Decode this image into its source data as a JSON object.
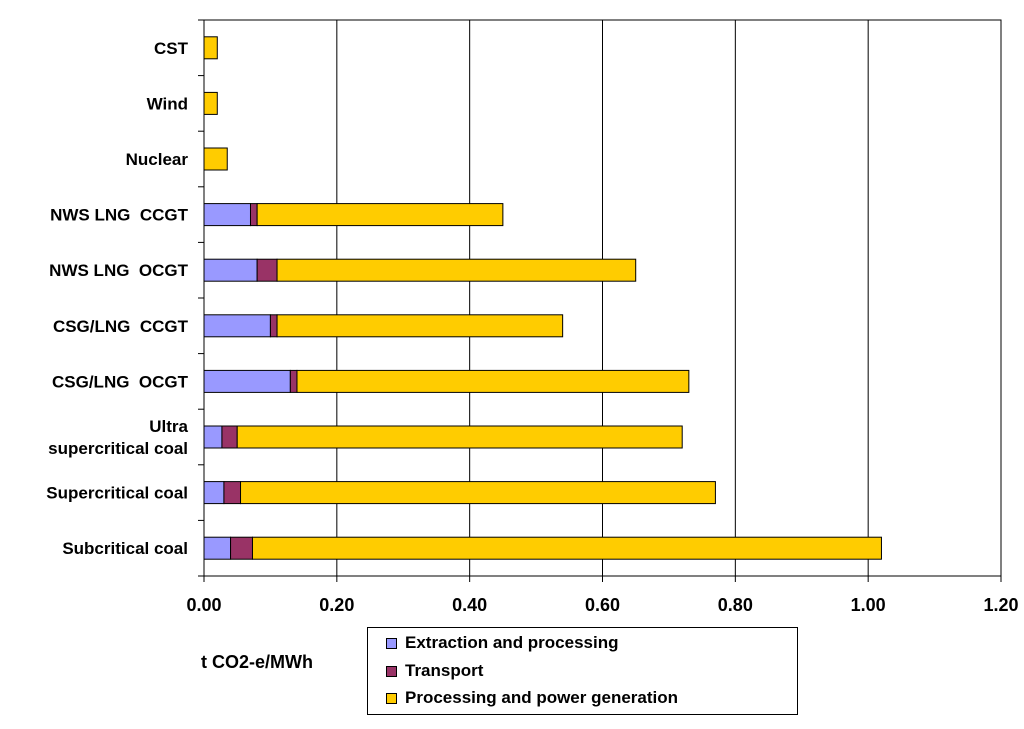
{
  "chart_data": {
    "type": "bar",
    "orientation": "horizontal",
    "stacked": true,
    "xlabel": "t CO2-e/MWh",
    "xlim": [
      0,
      1.2
    ],
    "xticks": [
      "0.00",
      "0.20",
      "0.40",
      "0.60",
      "0.80",
      "1.00",
      "1.20"
    ],
    "xtick_values": [
      0,
      0.2,
      0.4,
      0.6,
      0.8,
      1.0,
      1.2
    ],
    "grid": "vertical",
    "legend_position": "bottom",
    "categories": [
      "CST",
      "Wind",
      "Nuclear",
      "NWS LNG  CCGT",
      "NWS LNG  OCGT",
      "CSG/LNG  CCGT",
      "CSG/LNG  OCGT",
      "Ultra\nsupercritical coal",
      "Supercritical coal",
      "Subcritical coal"
    ],
    "series": [
      {
        "name": "Extraction and processing",
        "color": "#9999ff",
        "values": [
          0,
          0,
          0,
          0.07,
          0.08,
          0.1,
          0.13,
          0.027,
          0.03,
          0.04
        ]
      },
      {
        "name": "Transport",
        "color": "#993366",
        "values": [
          0,
          0,
          0,
          0.01,
          0.03,
          0.01,
          0.01,
          0.023,
          0.025,
          0.033
        ]
      },
      {
        "name": "Processing  and power generation",
        "color": "#ffcc00",
        "values": [
          0.02,
          0.02,
          0.035,
          0.37,
          0.54,
          0.43,
          0.59,
          0.67,
          0.715,
          0.947
        ]
      }
    ]
  }
}
